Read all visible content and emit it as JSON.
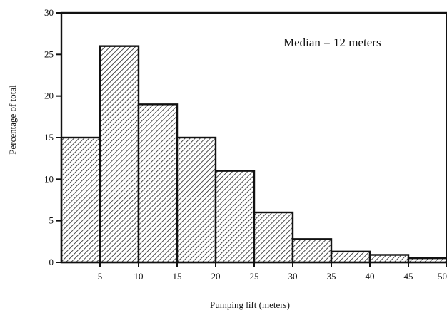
{
  "chart_data": {
    "type": "bar",
    "bin_edges": [
      0,
      5,
      10,
      15,
      20,
      25,
      30,
      35,
      40,
      45,
      50
    ],
    "values": [
      15,
      26,
      19,
      15,
      11,
      6,
      2.8,
      1.3,
      0.9,
      0.5
    ],
    "x_tick_labels": [
      "5",
      "10",
      "15",
      "20",
      "25",
      "30",
      "35",
      "40",
      "45",
      "50"
    ],
    "y_tick_labels": [
      "0",
      "5",
      "10",
      "15",
      "20",
      "25",
      "30"
    ],
    "xlabel": "Pumping lift (meters)",
    "ylabel": "Percentage of total",
    "annotation": "Median = 12 meters",
    "xlim": [
      0,
      50
    ],
    "ylim": [
      0,
      30
    ],
    "grid": false,
    "bar_fill": "hatched",
    "bar_color": "#111111"
  }
}
